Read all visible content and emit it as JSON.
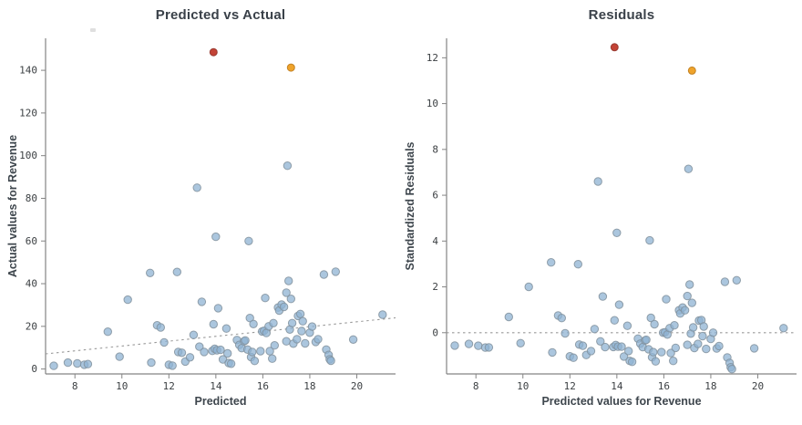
{
  "figure": {
    "background": "#ffffff",
    "axis_color": "#848484",
    "tick_label_color": "#3C4043"
  },
  "chart_data": [
    {
      "type": "scatter",
      "title": "Predicted vs Actual",
      "xlabel": "Predicted",
      "ylabel": "Actual values for Revenue",
      "xlim": [
        6.75,
        21.65
      ],
      "ylim": [
        -2.3,
        155
      ],
      "xticks": [
        8,
        10,
        12,
        14,
        16,
        18,
        20
      ],
      "yticks": [
        0,
        20,
        40,
        60,
        80,
        100,
        120,
        140
      ],
      "grid": false,
      "legend": "none",
      "axis_color": "#848484",
      "refline": {
        "style": "dashed",
        "color": "#9A9A9A",
        "x1": 6.75,
        "y1": 7.1,
        "x2": 21.65,
        "y2": 24.0
      },
      "series": [
        {
          "name": "observations",
          "color": "#8FB3D3",
          "edge_color": "#81919C",
          "radius": 4.2,
          "opacity": 0.75,
          "points": [
            [
              7.1,
              1.5
            ],
            [
              7.7,
              3
            ],
            [
              8.1,
              2.6
            ],
            [
              8.4,
              2
            ],
            [
              8.55,
              2.3
            ],
            [
              9.4,
              17.5
            ],
            [
              9.9,
              5.8
            ],
            [
              10.25,
              32.5
            ],
            [
              11.2,
              45
            ],
            [
              11.25,
              3
            ],
            [
              11.5,
              20.5
            ],
            [
              11.65,
              19.5
            ],
            [
              11.8,
              12.5
            ],
            [
              12,
              2
            ],
            [
              12.15,
              1.6
            ],
            [
              12.35,
              45.5
            ],
            [
              12.4,
              8
            ],
            [
              12.55,
              7.6
            ],
            [
              12.7,
              3.5
            ],
            [
              12.9,
              5.5
            ],
            [
              13.05,
              16
            ],
            [
              13.2,
              85
            ],
            [
              13.3,
              10.5
            ],
            [
              13.4,
              31.5
            ],
            [
              13.5,
              8
            ],
            [
              13.85,
              8.5
            ],
            [
              13.9,
              21
            ],
            [
              13.95,
              9.5
            ],
            [
              14,
              62
            ],
            [
              14.05,
              8.8
            ],
            [
              14.1,
              28.5
            ],
            [
              14.2,
              9
            ],
            [
              14.3,
              4.5
            ],
            [
              14.45,
              19
            ],
            [
              14.5,
              7.3
            ],
            [
              14.55,
              2.8
            ],
            [
              14.65,
              2.5
            ],
            [
              14.9,
              13.6
            ],
            [
              15,
              11.3
            ],
            [
              15.1,
              9.8
            ],
            [
              15.2,
              13
            ],
            [
              15.25,
              13.4
            ],
            [
              15.35,
              9.1
            ],
            [
              15.4,
              60
            ],
            [
              15.45,
              23.9
            ],
            [
              15.5,
              5.6
            ],
            [
              15.55,
              8
            ],
            [
              15.6,
              21.1
            ],
            [
              15.65,
              3.8
            ],
            [
              15.9,
              8.4
            ],
            [
              15.97,
              17.6
            ],
            [
              16.05,
              17.9
            ],
            [
              16.1,
              33.3
            ],
            [
              16.15,
              16.9
            ],
            [
              16.25,
              20
            ],
            [
              16.3,
              8.4
            ],
            [
              16.4,
              4.9
            ],
            [
              16.45,
              21.5
            ],
            [
              16.5,
              11.1
            ],
            [
              16.65,
              28.8
            ],
            [
              16.7,
              27.4
            ],
            [
              16.8,
              30.2
            ],
            [
              16.9,
              29.1
            ],
            [
              17,
              35.8
            ],
            [
              17,
              13
            ],
            [
              17.05,
              95.3
            ],
            [
              17.1,
              41.3
            ],
            [
              17.15,
              18.5
            ],
            [
              17.2,
              32.9
            ],
            [
              17.25,
              21.5
            ],
            [
              17.3,
              11.9
            ],
            [
              17.45,
              14
            ],
            [
              17.5,
              24.9
            ],
            [
              17.6,
              25.8
            ],
            [
              17.65,
              17.8
            ],
            [
              17.7,
              22.4
            ],
            [
              17.8,
              12
            ],
            [
              18,
              17
            ],
            [
              18.1,
              19.9
            ],
            [
              18.25,
              12.7
            ],
            [
              18.35,
              14
            ],
            [
              18.6,
              44.3
            ],
            [
              18.7,
              9.1
            ],
            [
              18.8,
              6.6
            ],
            [
              18.85,
              4.6
            ],
            [
              18.9,
              3.9
            ],
            [
              19.1,
              45.6
            ],
            [
              19.85,
              13.8
            ],
            [
              21.1,
              25.5
            ]
          ]
        },
        {
          "name": "outlier-red",
          "color": "#C0392B",
          "edge_color": "#8E2F27",
          "radius": 4,
          "opacity": 0.95,
          "points": [
            [
              13.9,
              148.5
            ]
          ]
        },
        {
          "name": "outlier-orange",
          "color": "#EE9E20",
          "edge_color": "#B87718",
          "radius": 4,
          "opacity": 0.95,
          "points": [
            [
              17.2,
              141.3
            ]
          ]
        }
      ]
    },
    {
      "type": "scatter",
      "title": "Residuals",
      "xlabel": "Predicted values for Revenue",
      "ylabel": "Standardized Residuals",
      "xlim": [
        6.75,
        21.65
      ],
      "ylim": [
        -1.8,
        12.85
      ],
      "xticks": [
        8,
        10,
        12,
        14,
        16,
        18,
        20
      ],
      "yticks": [
        0,
        2,
        4,
        6,
        8,
        10,
        12
      ],
      "grid": false,
      "legend": "none",
      "axis_color": "#848484",
      "refline": {
        "style": "dashed",
        "color": "#9A9A9A",
        "x1": 6.75,
        "y1": 0,
        "x2": 21.65,
        "y2": 0
      },
      "series": [
        {
          "name": "observations",
          "color": "#8FB3D3",
          "edge_color": "#81919C",
          "radius": 4.2,
          "opacity": 0.75,
          "points": [
            [
              7.1,
              -0.56
            ],
            [
              7.7,
              -0.49
            ],
            [
              8.1,
              -0.57
            ],
            [
              8.4,
              -0.65
            ],
            [
              8.55,
              -0.64
            ],
            [
              9.4,
              0.69
            ],
            [
              9.9,
              -0.46
            ],
            [
              10.25,
              2
            ],
            [
              11.2,
              3.07
            ],
            [
              11.25,
              -0.86
            ],
            [
              11.5,
              0.75
            ],
            [
              11.65,
              0.64
            ],
            [
              11.8,
              -0.03
            ],
            [
              12,
              -1.03
            ],
            [
              12.15,
              -1.09
            ],
            [
              12.35,
              2.99
            ],
            [
              12.4,
              -0.52
            ],
            [
              12.55,
              -0.57
            ],
            [
              12.7,
              -0.97
            ],
            [
              12.9,
              -0.8
            ],
            [
              13.05,
              0.16
            ],
            [
              13.2,
              6.6
            ],
            [
              13.3,
              -0.38
            ],
            [
              13.4,
              1.58
            ],
            [
              13.5,
              -0.63
            ],
            [
              13.85,
              -0.62
            ],
            [
              13.9,
              0.54
            ],
            [
              13.95,
              -0.54
            ],
            [
              14,
              4.36
            ],
            [
              14.05,
              -0.61
            ],
            [
              14.1,
              1.22
            ],
            [
              14.2,
              -0.61
            ],
            [
              14.3,
              -1.04
            ],
            [
              14.45,
              0.3
            ],
            [
              14.5,
              -0.8
            ],
            [
              14.55,
              -1.23
            ],
            [
              14.65,
              -1.27
            ],
            [
              14.9,
              -0.26
            ],
            [
              15,
              -0.48
            ],
            [
              15.1,
              -0.63
            ],
            [
              15.2,
              -0.34
            ],
            [
              15.25,
              -0.31
            ],
            [
              15.35,
              -0.72
            ],
            [
              15.4,
              4.03
            ],
            [
              15.45,
              0.65
            ],
            [
              15.5,
              -1.07
            ],
            [
              15.55,
              -0.85
            ],
            [
              15.6,
              0.37
            ],
            [
              15.65,
              -1.25
            ],
            [
              15.9,
              -0.85
            ],
            [
              15.97,
              0
            ],
            [
              16.05,
              0.02
            ],
            [
              16.1,
              1.46
            ],
            [
              16.15,
              -0.08
            ],
            [
              16.25,
              0.2
            ],
            [
              16.3,
              -0.89
            ],
            [
              16.4,
              -1.23
            ],
            [
              16.45,
              0.32
            ],
            [
              16.5,
              -0.66
            ],
            [
              16.65,
              0.98
            ],
            [
              16.7,
              0.84
            ],
            [
              16.8,
              1.1
            ],
            [
              16.9,
              0.98
            ],
            [
              17,
              1.6
            ],
            [
              17,
              -0.53
            ],
            [
              17.05,
              7.15
            ],
            [
              17.1,
              2.1
            ],
            [
              17.15,
              -0.04
            ],
            [
              17.2,
              1.3
            ],
            [
              17.25,
              0.23
            ],
            [
              17.3,
              -0.67
            ],
            [
              17.45,
              -0.49
            ],
            [
              17.5,
              0.53
            ],
            [
              17.6,
              0.55
            ],
            [
              17.65,
              -0.15
            ],
            [
              17.7,
              0.27
            ],
            [
              17.8,
              -0.71
            ],
            [
              18,
              -0.27
            ],
            [
              18.1,
              0
            ],
            [
              18.25,
              -0.69
            ],
            [
              18.35,
              -0.58
            ],
            [
              18.6,
              2.22
            ],
            [
              18.7,
              -1.08
            ],
            [
              18.8,
              -1.32
            ],
            [
              18.85,
              -1.51
            ],
            [
              18.9,
              -1.59
            ],
            [
              19.1,
              2.29
            ],
            [
              19.85,
              -0.68
            ],
            [
              21.1,
              0.2
            ]
          ]
        },
        {
          "name": "outlier-red",
          "color": "#C0392B",
          "edge_color": "#8E2F27",
          "radius": 4,
          "opacity": 0.95,
          "points": [
            [
              13.9,
              12.46
            ]
          ]
        },
        {
          "name": "outlier-orange",
          "color": "#EE9E20",
          "edge_color": "#B87718",
          "radius": 4,
          "opacity": 0.95,
          "points": [
            [
              17.2,
              11.44
            ]
          ]
        }
      ]
    }
  ]
}
